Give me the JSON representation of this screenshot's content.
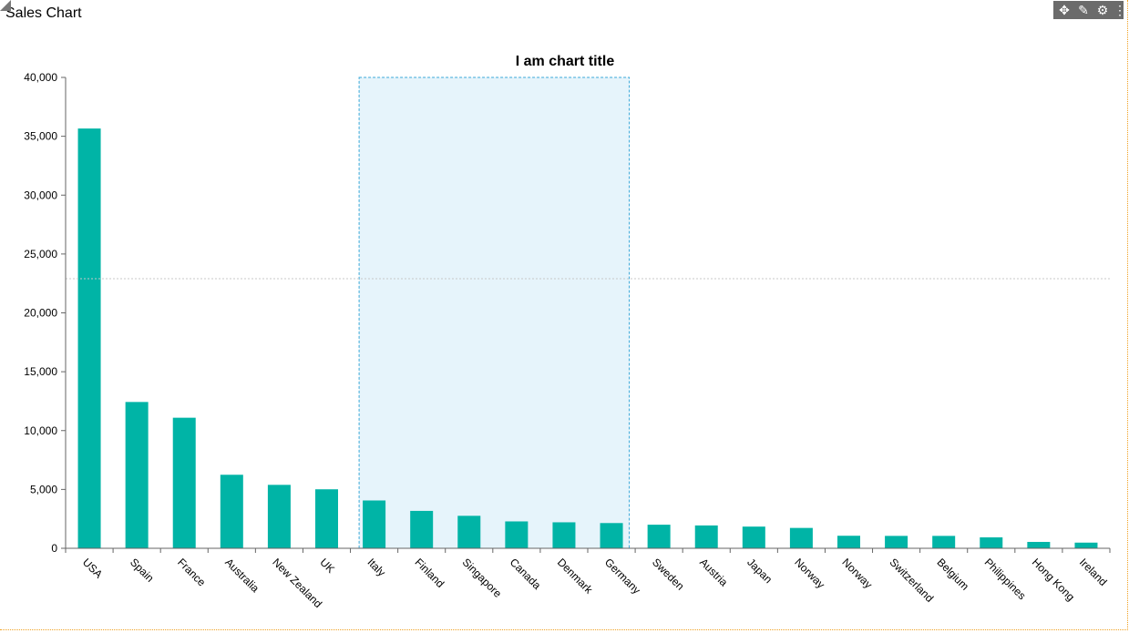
{
  "panel": {
    "title": "Sales Chart"
  },
  "toolbar": [
    {
      "name": "move-icon",
      "glyph": "✥"
    },
    {
      "name": "edit-icon",
      "glyph": "✎"
    },
    {
      "name": "gear-icon",
      "glyph": "⚙"
    },
    {
      "name": "kebab-menu-icon",
      "glyph": "⋮"
    }
  ],
  "colors": {
    "bar": "#00b4a6",
    "selection_fill": "#e6f4fb",
    "selection_stroke": "#3aa8d8",
    "reference_line": "#c8c8c8",
    "axis": "#666666"
  },
  "chart_data": {
    "type": "bar",
    "title": "I am chart title",
    "xlabel": "",
    "ylabel": "",
    "categories": [
      "USA",
      "Spain",
      "France",
      "Australia",
      "New Zealand",
      "UK",
      "Italy",
      "Finland",
      "Singapore",
      "Canada",
      "Denmark",
      "Germany",
      "Sweden",
      "Austria",
      "Japan",
      "Norway",
      "Norway",
      "Switzerland",
      "Belgium",
      "Philippines",
      "Hong Kong",
      "Ireland"
    ],
    "values": [
      35659,
      12429,
      11091,
      6246,
      5389,
      5012,
      4063,
      3178,
      2759,
      2284,
      2208,
      2144,
      2004,
      1941,
      1843,
      1730,
      1065,
      1054,
      1054,
      930,
      543,
      482
    ],
    "ylim": [
      0,
      40000
    ],
    "yticks": [
      0,
      5000,
      10000,
      15000,
      20000,
      25000,
      30000,
      35000,
      40000
    ],
    "ytick_labels": [
      "0",
      "5,000",
      "10,000",
      "15,000",
      "20,000",
      "25,000",
      "30,000",
      "35,000",
      "40,000"
    ],
    "reference_line": 22900,
    "selection": {
      "from_category": "Italy",
      "to_category": "Germany"
    },
    "grid": false,
    "legend": "none"
  }
}
